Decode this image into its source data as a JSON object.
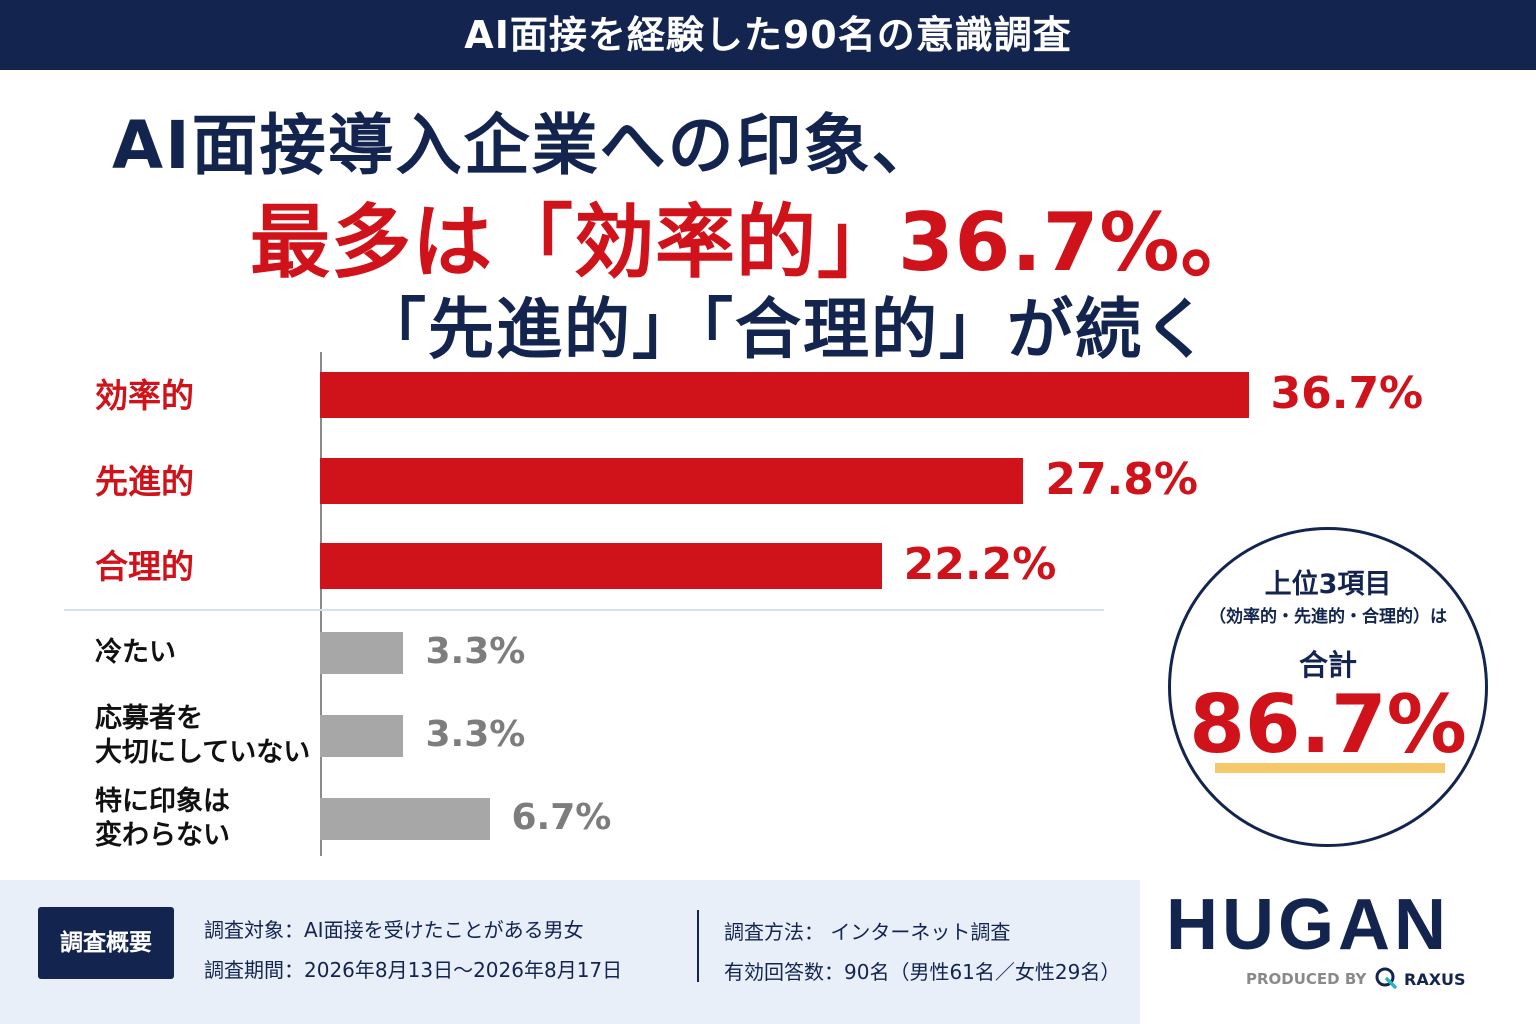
{
  "banner": "AI面接を経験した90名の意識調査",
  "headline": {
    "line1": "AI面接導入企業への印象、",
    "line2": "最多は「効率的」36.7%。",
    "line3": "「先進的」「合理的」が続く"
  },
  "chart_data": {
    "type": "bar",
    "orientation": "horizontal",
    "categories": [
      "効率的",
      "先進的",
      "合理的",
      "冷たい",
      "応募者を\n大切にしていない",
      "特に印象は\n変わらない"
    ],
    "values": [
      36.7,
      27.8,
      22.2,
      3.3,
      3.3,
      6.7
    ],
    "value_labels": [
      "36.7%",
      "27.8%",
      "22.2%",
      "3.3%",
      "3.3%",
      "6.7%"
    ],
    "unit": "%",
    "colors": {
      "top": "#d0121b",
      "other": "#a7a7a7"
    },
    "top_count": 3
  },
  "summary": {
    "line1": "上位3項目",
    "line2": "（効率的・先進的・合理的）は",
    "line3": "合計",
    "total": "86.7%"
  },
  "footer": {
    "badge": "調査概要",
    "target": "調査対象：AI面接を受けたことがある男女",
    "period": "調査期間：2026年8月13日～2026年8月17日",
    "method": "調査方法： インターネット調査",
    "responses": "有効回答数：90名（男性61名／女性29名）"
  },
  "logo": {
    "name": "HUGAN",
    "produced_by": "PRODUCED BY",
    "company": "RAXUS"
  },
  "colors": {
    "navy": "#13254f",
    "red": "#d0121b",
    "gray": "#a7a7a7",
    "highlight": "#f5c96a"
  }
}
